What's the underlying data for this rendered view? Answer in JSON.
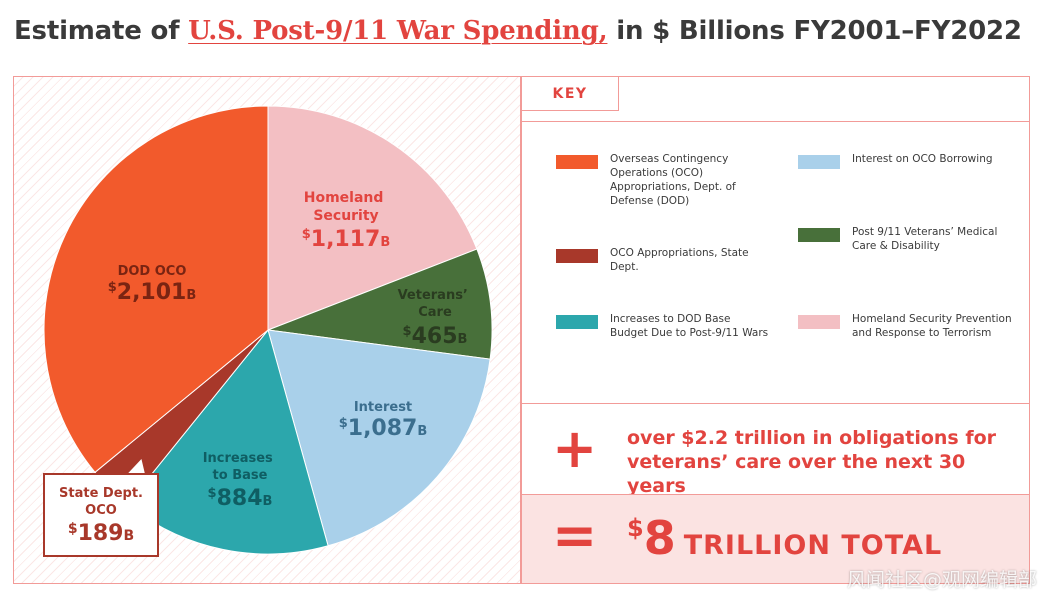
{
  "title": {
    "prefix": "Estimate of ",
    "highlight": "U.S. Post-9/11 War Spending,",
    "suffix": " in $ Billions FY2001–FY2022"
  },
  "chart_data": {
    "type": "pie",
    "title": "Estimate of U.S. Post-9/11 War Spending, in $ Billions FY2001–FY2022",
    "unit": "B",
    "slices": [
      {
        "label": "Homeland Security",
        "value": 1117,
        "display": "1,117",
        "color": "#f3bfc3"
      },
      {
        "label": "Veterans’ Care",
        "value": 465,
        "display": "465",
        "color": "#48703a"
      },
      {
        "label": "Interest",
        "value": 1087,
        "display": "1,087",
        "color": "#a9d0ea"
      },
      {
        "label": "Increases to Base",
        "value": 884,
        "display": "884",
        "color": "#2ca7ac"
      },
      {
        "label": "State Dept. OCO",
        "value": 189,
        "display": "189",
        "color": "#a8382a"
      },
      {
        "label": "DOD OCO",
        "value": 2101,
        "display": "2,101",
        "color": "#f25a2c"
      }
    ]
  },
  "slice_labels": {
    "homeland": {
      "line1": "Homeland",
      "line2": "Security",
      "dollar": "$",
      "value": "1,117",
      "unit": "B"
    },
    "veterans": {
      "line1": "Veterans’",
      "line2": "Care",
      "dollar": "$",
      "value": "465",
      "unit": "B"
    },
    "interest": {
      "line1": "Interest",
      "dollar": "$",
      "value": "1,087",
      "unit": "B"
    },
    "base": {
      "line1": "Increases",
      "line2": "to Base",
      "dollar": "$",
      "value": "884",
      "unit": "B"
    },
    "dod": {
      "line1": "DOD OCO",
      "dollar": "$",
      "value": "2,101",
      "unit": "B"
    },
    "state": {
      "line1": "State Dept.",
      "line2": "OCO",
      "dollar": "$",
      "value": "189",
      "unit": "B"
    }
  },
  "key": {
    "heading": "KEY",
    "items": [
      {
        "text": "Overseas Contingency Operations (OCO) Appropriations, Dept. of Defense (DOD)",
        "color": "#f25a2c"
      },
      {
        "text": "OCO Appropriations, State Dept.",
        "color": "#a8382a"
      },
      {
        "text": "Increases to DOD Base Budget Due to Post-9/11 Wars",
        "color": "#2ca7ac"
      },
      {
        "text": "Interest on OCO Borrowing",
        "color": "#a9d0ea"
      },
      {
        "text": "Post 9/11 Veterans’ Medical Care & Disability",
        "color": "#48703a"
      },
      {
        "text": "Homeland Security Prevention and Response to Terrorism",
        "color": "#f3bfc3"
      }
    ]
  },
  "plus": {
    "symbol": "+",
    "line1": "over $2.2 trillion in obligations for",
    "line2": "veterans’ care over the next 30 years"
  },
  "total": {
    "symbol": "=",
    "dollar": "$",
    "amount": "8",
    "label": "TRILLION TOTAL"
  },
  "watermark": "风闻社区@观网编辑部"
}
